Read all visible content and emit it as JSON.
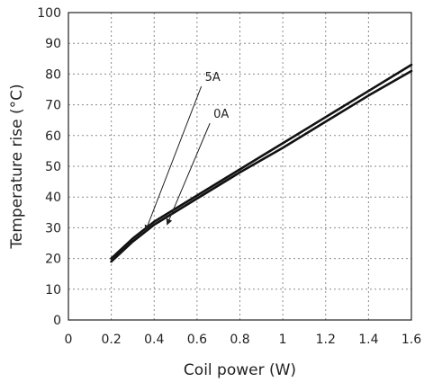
{
  "chart_data": {
    "type": "line",
    "xlabel": "Coil power (W)",
    "ylabel": "Temperature rise (°C)",
    "xlim": [
      0,
      1.6
    ],
    "ylim": [
      0,
      100
    ],
    "xticks": [
      "0",
      "0.2",
      "0.4",
      "0.6",
      "0.8",
      "1",
      "1.2",
      "1.4",
      "1.6"
    ],
    "yticks": [
      "0",
      "10",
      "20",
      "30",
      "40",
      "50",
      "60",
      "70",
      "80",
      "90",
      "100"
    ],
    "grid": true,
    "series": [
      {
        "name": "5A",
        "x": [
          0.2,
          0.3,
          0.4,
          0.6,
          0.8,
          1.0,
          1.2,
          1.4,
          1.6
        ],
        "y": [
          20,
          26.5,
          32,
          40.5,
          49,
          57.5,
          66,
          74.5,
          83
        ]
      },
      {
        "name": "0A",
        "x": [
          0.2,
          0.3,
          0.4,
          0.6,
          0.8,
          1.0,
          1.2,
          1.4,
          1.6
        ],
        "y": [
          19,
          25.5,
          31,
          39.5,
          48,
          56,
          64.5,
          73,
          81
        ]
      }
    ],
    "annotations": [
      {
        "label": "5A",
        "text_at": [
          0.62,
          76
        ],
        "arrow_to": [
          0.36,
          29
        ]
      },
      {
        "label": "0A",
        "text_at": [
          0.66,
          64
        ],
        "arrow_to": [
          0.46,
          31
        ]
      }
    ]
  }
}
